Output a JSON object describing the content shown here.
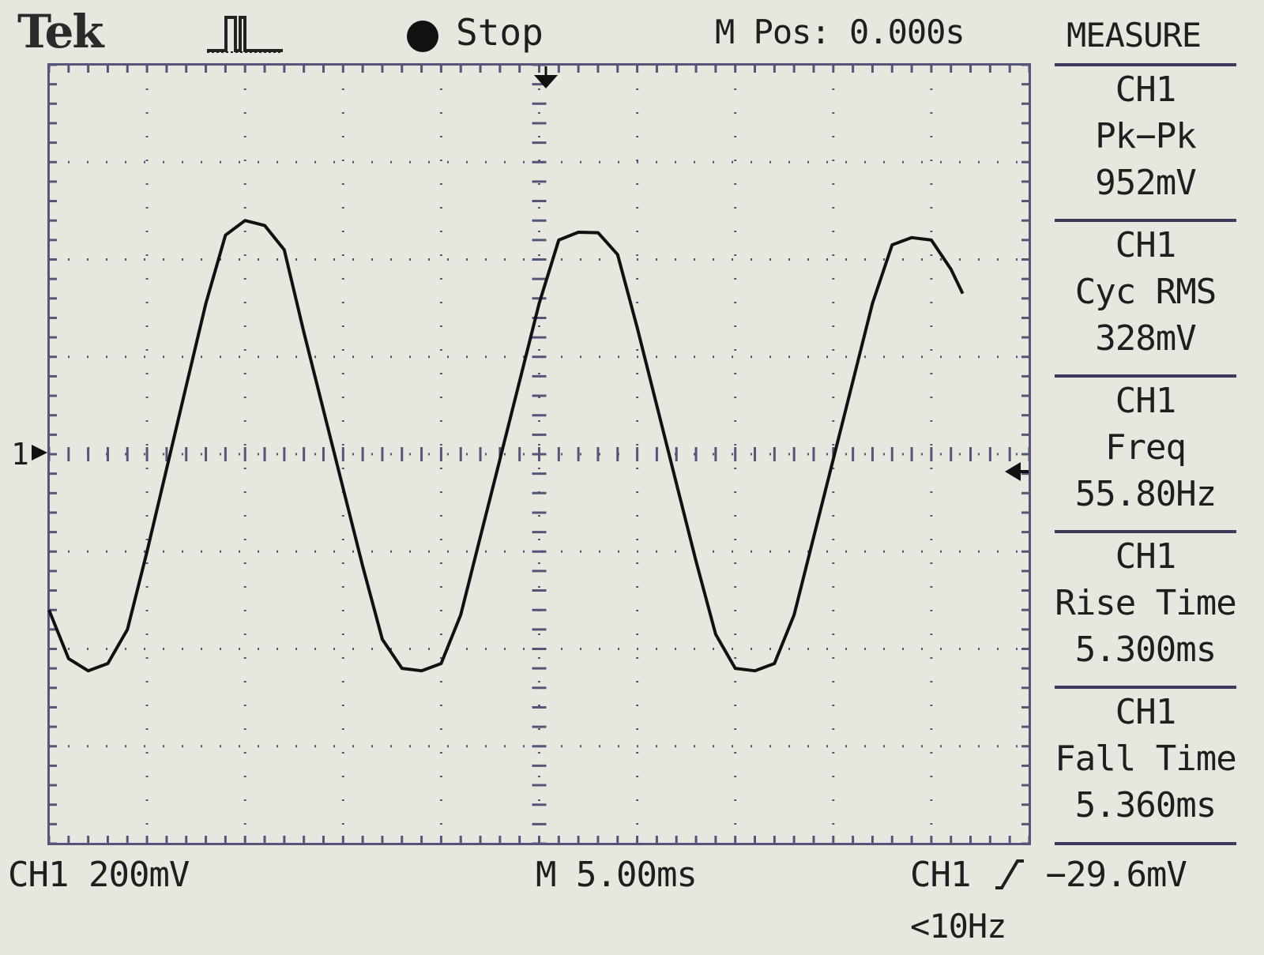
{
  "header": {
    "brand": "Tek",
    "acquisition_icon": "pulse-waveform-icon",
    "run_state": "Stop",
    "horizontal_position": "M Pos: 0.000s",
    "menu_title": "MEASURE"
  },
  "measurements": [
    {
      "source": "CH1",
      "name": "Pk−Pk",
      "value": "952mV"
    },
    {
      "source": "CH1",
      "name": "Cyc RMS",
      "value": "328mV"
    },
    {
      "source": "CH1",
      "name": "Freq",
      "value": "55.80Hz"
    },
    {
      "source": "CH1",
      "name": "Rise Time",
      "value": "5.300ms"
    },
    {
      "source": "CH1",
      "name": "Fall Time",
      "value": "5.360ms"
    }
  ],
  "footer": {
    "channel_scale": "CH1  200mV",
    "timebase": "M 5.00ms",
    "trigger_source": "CH1",
    "trigger_slope_icon": "rising-edge-icon",
    "trigger_level": "−29.6mV",
    "frequency_note": "<10Hz"
  },
  "markers": {
    "channel_ground_label": "1"
  },
  "colors": {
    "screen_background": "#e7e7df",
    "trace": "#111111",
    "graticule": "#55557a"
  },
  "chart_data": {
    "type": "line",
    "title": "",
    "xlabel": "",
    "ylabel": "",
    "x_unit": "ms",
    "y_unit": "mV",
    "xlim": [
      -25,
      25
    ],
    "ylim": [
      -800,
      800
    ],
    "grid": true,
    "series": [
      {
        "points": [
          [
            -25.0,
            -320
          ],
          [
            -24.0,
            -420
          ],
          [
            -23.0,
            -445
          ],
          [
            -22.0,
            -430
          ],
          [
            -21.0,
            -360
          ],
          [
            -20.0,
            -200
          ],
          [
            -19.0,
            -30
          ],
          [
            -18.0,
            140
          ],
          [
            -17.0,
            310
          ],
          [
            -16.0,
            450
          ],
          [
            -15.0,
            480
          ],
          [
            -14.0,
            470
          ],
          [
            -13.0,
            420
          ],
          [
            -12.0,
            250
          ],
          [
            -11.0,
            90
          ],
          [
            -10.0,
            -70
          ],
          [
            -9.0,
            -230
          ],
          [
            -8.0,
            -380
          ],
          [
            -7.0,
            -440
          ],
          [
            -6.0,
            -445
          ],
          [
            -5.0,
            -430
          ],
          [
            -4.0,
            -330
          ],
          [
            -3.0,
            -170
          ],
          [
            -2.0,
            -10
          ],
          [
            -1.0,
            150
          ],
          [
            0.0,
            310
          ],
          [
            1.0,
            440
          ],
          [
            2.0,
            456
          ],
          [
            3.0,
            455
          ],
          [
            4.0,
            410
          ],
          [
            5.0,
            260
          ],
          [
            6.0,
            100
          ],
          [
            7.0,
            -60
          ],
          [
            8.0,
            -220
          ],
          [
            9.0,
            -370
          ],
          [
            10.0,
            -440
          ],
          [
            11.0,
            -445
          ],
          [
            12.0,
            -430
          ],
          [
            13.0,
            -330
          ],
          [
            14.0,
            -170
          ],
          [
            15.0,
            -10
          ],
          [
            16.0,
            150
          ],
          [
            17.0,
            310
          ],
          [
            18.0,
            430
          ],
          [
            19.0,
            445
          ],
          [
            20.0,
            440
          ],
          [
            21.0,
            380
          ],
          [
            21.6,
            330
          ]
        ]
      }
    ]
  }
}
